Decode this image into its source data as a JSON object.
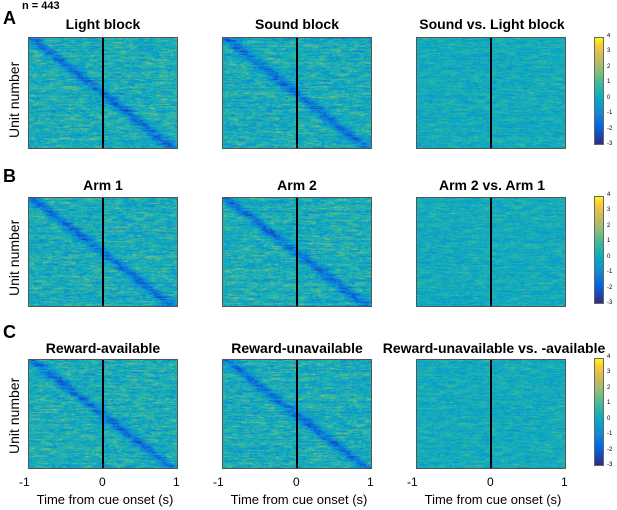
{
  "figure": {
    "n_label": "n = 443",
    "ylabel": "Unit number",
    "xlabel": "Time from cue onset (s)"
  },
  "colorbar": {
    "ticks": [
      4,
      3,
      2,
      1,
      0,
      -1,
      -2,
      -3
    ],
    "colormap": "parula"
  },
  "chart_data": [
    {
      "type": "heatmap",
      "panel": "A",
      "title": "Light block",
      "xlim": [
        -1,
        1
      ],
      "clim": [
        -3,
        4
      ],
      "cue_line_x": 0,
      "diagonal": true
    },
    {
      "type": "heatmap",
      "panel": "A",
      "title": "Sound block",
      "xlim": [
        -1,
        1
      ],
      "clim": [
        -3,
        4
      ],
      "cue_line_x": 0,
      "diagonal": true
    },
    {
      "type": "heatmap",
      "panel": "A",
      "title": "Sound vs. Light block",
      "xlim": [
        -1,
        1
      ],
      "clim": [
        -3,
        4
      ],
      "cue_line_x": 0,
      "diagonal": false
    },
    {
      "type": "heatmap",
      "panel": "B",
      "title": "Arm 1",
      "xlim": [
        -1,
        1
      ],
      "clim": [
        -3,
        4
      ],
      "cue_line_x": 0,
      "diagonal": true
    },
    {
      "type": "heatmap",
      "panel": "B",
      "title": "Arm 2",
      "xlim": [
        -1,
        1
      ],
      "clim": [
        -3,
        4
      ],
      "cue_line_x": 0,
      "diagonal": true
    },
    {
      "type": "heatmap",
      "panel": "B",
      "title": "Arm 2 vs. Arm 1",
      "xlim": [
        -1,
        1
      ],
      "clim": [
        -3,
        4
      ],
      "cue_line_x": 0,
      "diagonal": false
    },
    {
      "type": "heatmap",
      "panel": "C",
      "title": "Reward-available",
      "xlim": [
        -1,
        1
      ],
      "clim": [
        -3,
        4
      ],
      "cue_line_x": 0,
      "diagonal": true
    },
    {
      "type": "heatmap",
      "panel": "C",
      "title": "Reward-unavailable",
      "xlim": [
        -1,
        1
      ],
      "clim": [
        -3,
        4
      ],
      "cue_line_x": 0,
      "diagonal": true
    },
    {
      "type": "heatmap",
      "panel": "C",
      "title": "Reward-unavailable vs. -available",
      "xlim": [
        -1,
        1
      ],
      "clim": [
        -3,
        4
      ],
      "cue_line_x": 0,
      "diagonal": false
    }
  ],
  "rows": [
    {
      "letter": "A"
    },
    {
      "letter": "B"
    },
    {
      "letter": "C"
    }
  ],
  "x_ticks": [
    "-1",
    "0",
    "1"
  ]
}
